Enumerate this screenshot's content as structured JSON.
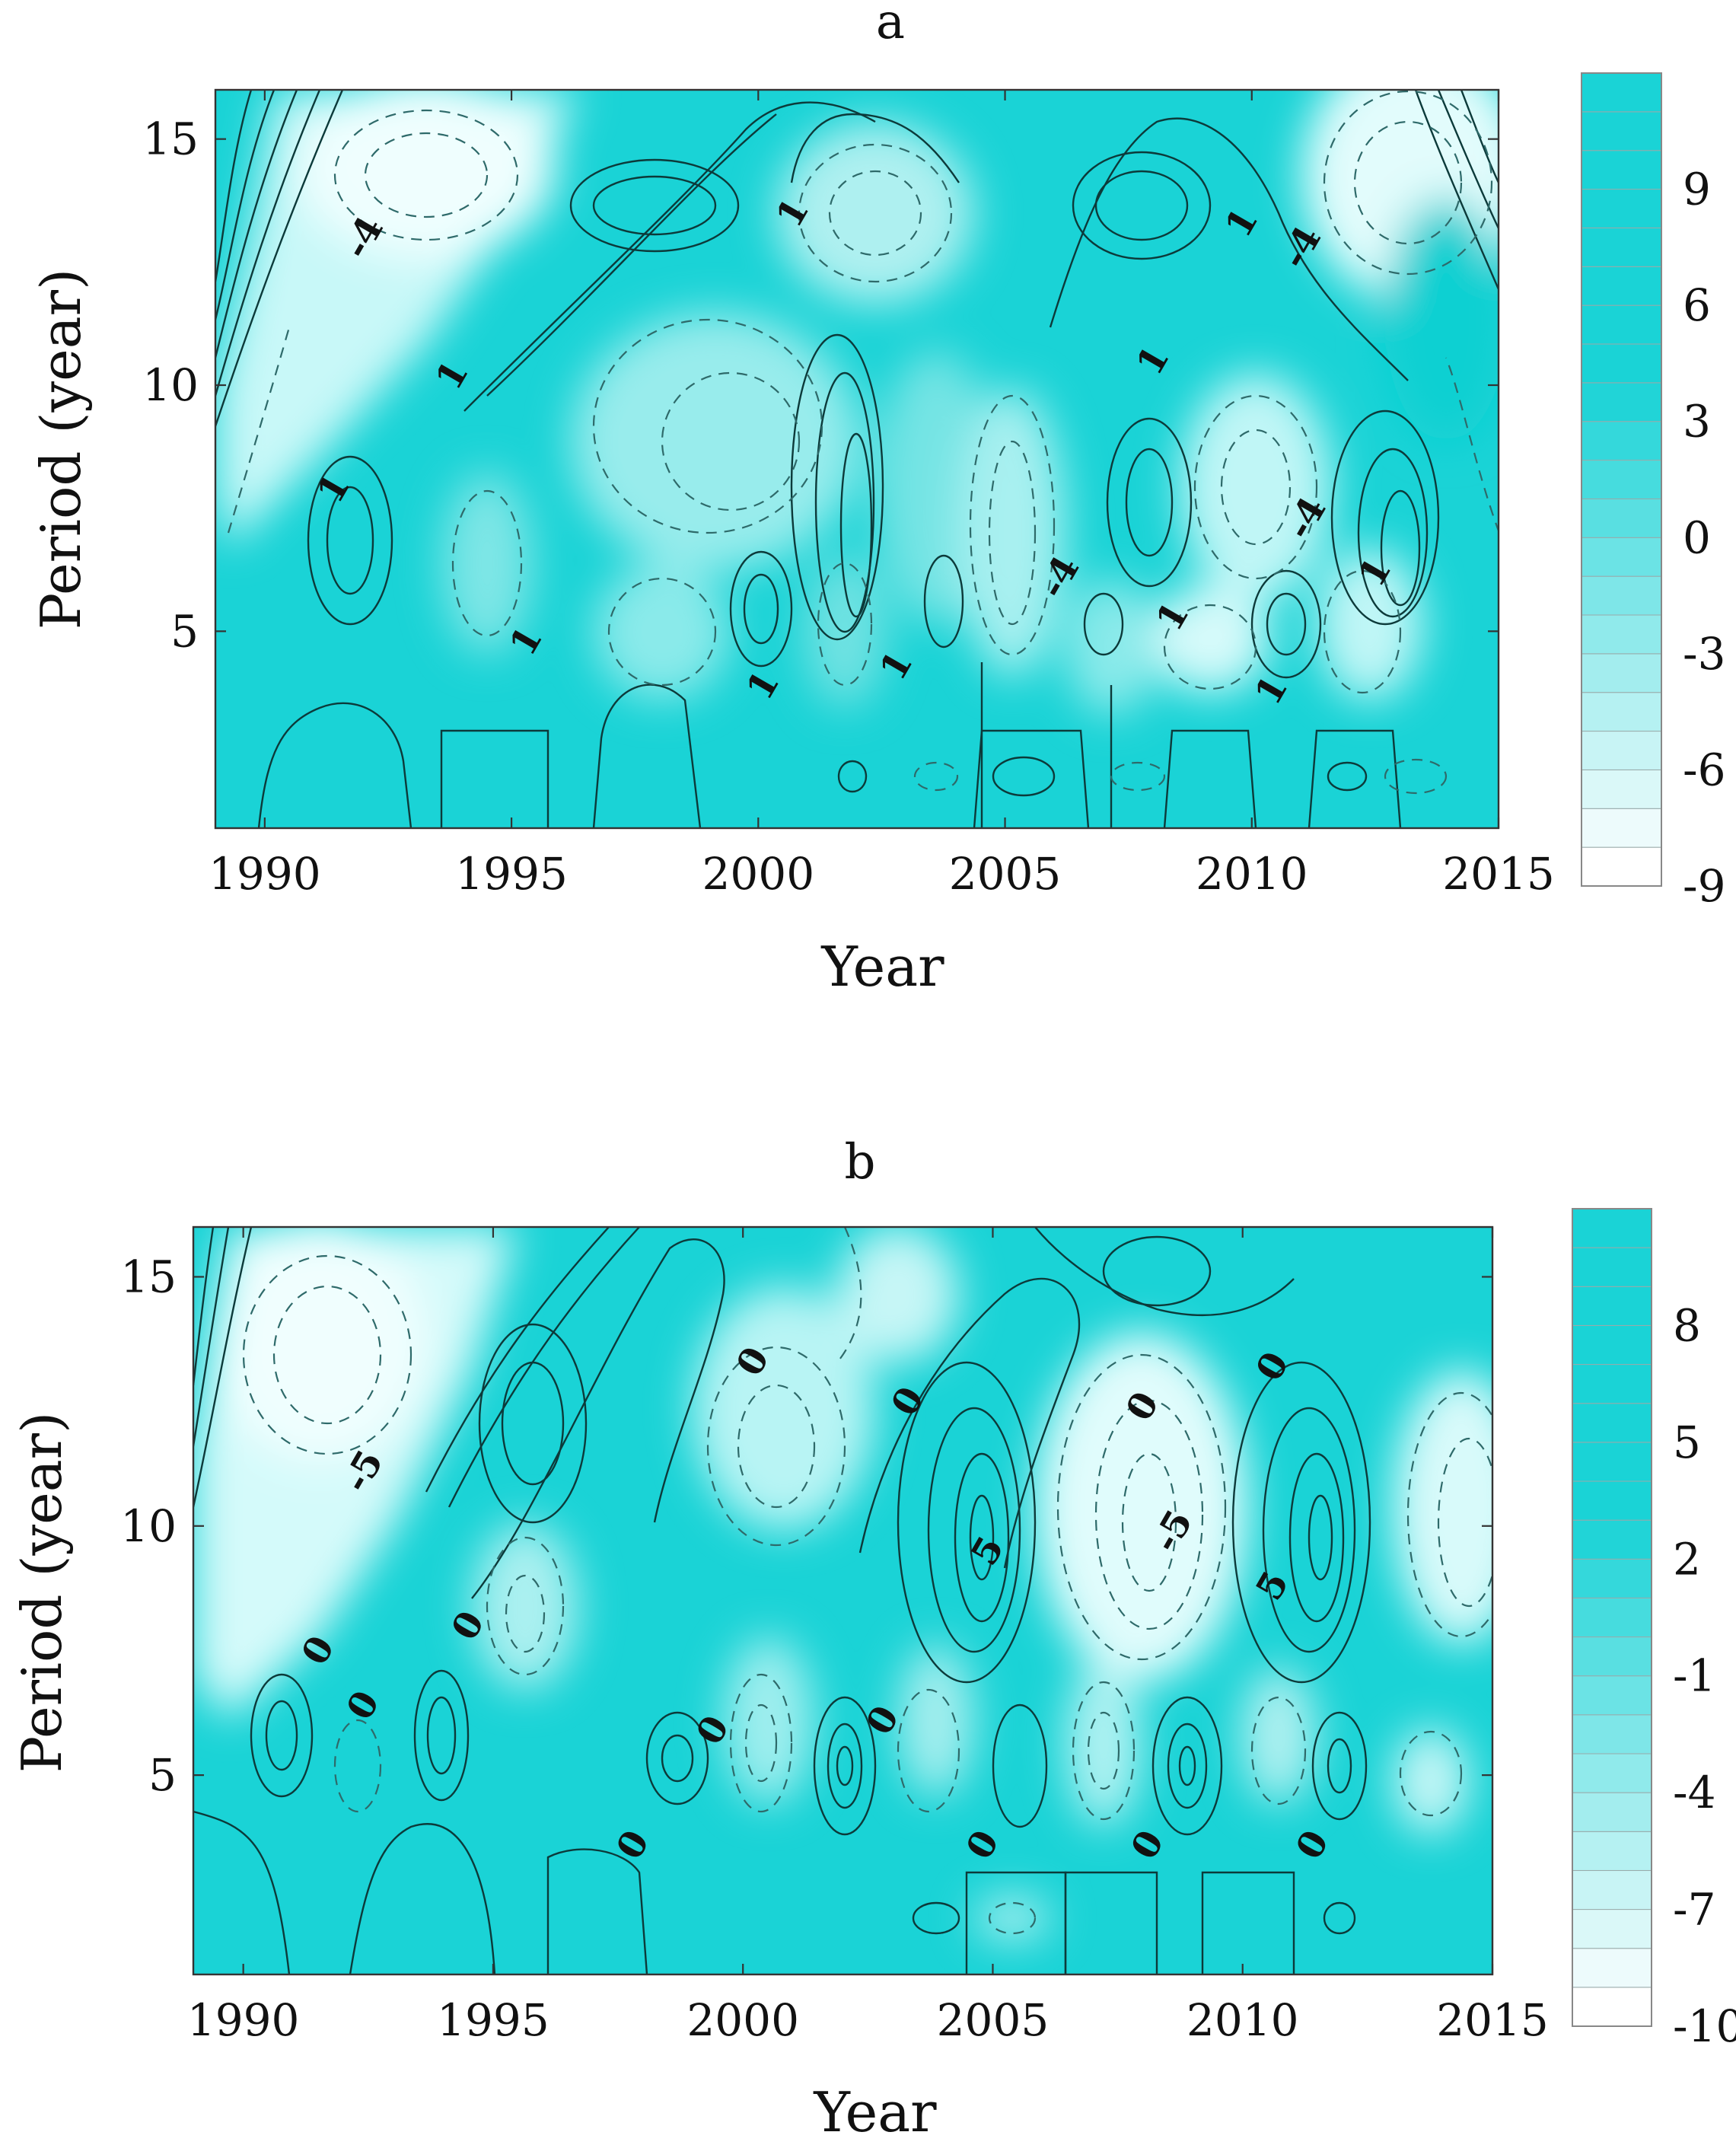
{
  "chart_data": [
    {
      "type": "heatmap",
      "title": "a",
      "xlabel": "Year",
      "ylabel": "Period (year)",
      "xlim": [
        1989,
        2015
      ],
      "ylim": [
        1,
        16
      ],
      "x_ticks": [
        1990,
        1995,
        2000,
        2005,
        2010,
        2015
      ],
      "y_ticks": [
        5,
        10,
        15
      ],
      "colorbar_ticks": [
        9,
        6,
        3,
        0,
        -3,
        -6,
        -9
      ],
      "colorbar_range": [
        -9,
        12
      ],
      "contour_labels": [
        {
          "text": "-4",
          "x": 1992.0,
          "y": 13.0
        },
        {
          "text": "1",
          "x": 2000.7,
          "y": 13.5
        },
        {
          "text": "1",
          "x": 2009.8,
          "y": 13.3
        },
        {
          "text": "-4",
          "x": 2011.0,
          "y": 12.8
        },
        {
          "text": "1",
          "x": 1993.8,
          "y": 10.2
        },
        {
          "text": "1",
          "x": 2008.0,
          "y": 10.5
        },
        {
          "text": "1",
          "x": 1991.4,
          "y": 7.9
        },
        {
          "text": "-4",
          "x": 2011.1,
          "y": 7.3
        },
        {
          "text": "-4",
          "x": 2006.1,
          "y": 6.1
        },
        {
          "text": "1",
          "x": 2012.5,
          "y": 6.2
        },
        {
          "text": "1",
          "x": 1995.3,
          "y": 4.8
        },
        {
          "text": "1",
          "x": 2008.4,
          "y": 5.3
        },
        {
          "text": "1",
          "x": 2000.1,
          "y": 3.9
        },
        {
          "text": "1",
          "x": 2002.8,
          "y": 4.3
        },
        {
          "text": "1",
          "x": 2010.4,
          "y": 3.8
        }
      ]
    },
    {
      "type": "heatmap",
      "title": "b",
      "xlabel": "Year",
      "ylabel": "Period (year)",
      "xlim": [
        1989,
        2015
      ],
      "ylim": [
        1,
        16
      ],
      "x_ticks": [
        1990,
        1995,
        2000,
        2005,
        2010,
        2015
      ],
      "y_ticks": [
        5,
        10,
        15
      ],
      "colorbar_ticks": [
        8,
        5,
        2,
        -1,
        -4,
        -7,
        -10
      ],
      "colorbar_range": [
        -10,
        11
      ],
      "contour_labels": [
        {
          "text": "0",
          "x": 2000.2,
          "y": 13.3
        },
        {
          "text": "0",
          "x": 2003.3,
          "y": 12.5
        },
        {
          "text": "0",
          "x": 2008.0,
          "y": 12.4
        },
        {
          "text": "0",
          "x": 2010.6,
          "y": 13.2
        },
        {
          "text": "-5",
          "x": 1992.4,
          "y": 11.1
        },
        {
          "text": "5",
          "x": 2004.9,
          "y": 9.5
        },
        {
          "text": "-5",
          "x": 2008.6,
          "y": 9.9
        },
        {
          "text": "5",
          "x": 2010.6,
          "y": 8.8
        },
        {
          "text": "0",
          "x": 1994.5,
          "y": 8.0
        },
        {
          "text": "0",
          "x": 1991.5,
          "y": 7.5
        },
        {
          "text": "0",
          "x": 1992.4,
          "y": 6.4
        },
        {
          "text": "0",
          "x": 1999.4,
          "y": 5.9
        },
        {
          "text": "0",
          "x": 2002.8,
          "y": 6.1
        },
        {
          "text": "0",
          "x": 1997.8,
          "y": 3.6
        },
        {
          "text": "0",
          "x": 2004.8,
          "y": 3.6
        },
        {
          "text": "0",
          "x": 2008.1,
          "y": 3.6
        },
        {
          "text": "0",
          "x": 2011.4,
          "y": 3.6
        }
      ]
    }
  ]
}
